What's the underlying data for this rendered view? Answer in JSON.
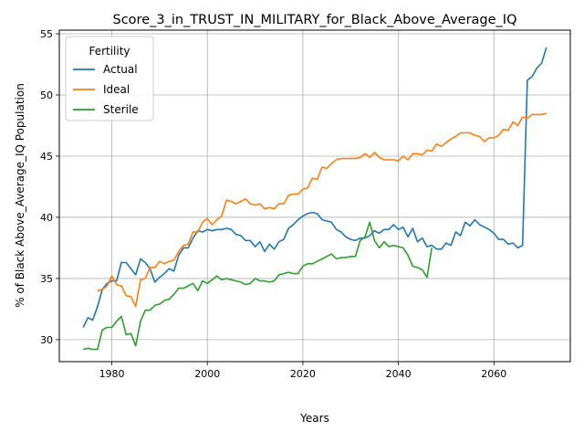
{
  "chart_data": {
    "type": "line",
    "title": "Score_3_in_TRUST_IN_MILITARY_for_Black_Above_Average_IQ",
    "xlabel": "Years",
    "ylabel": "% of Black Above_Average_IQ Population",
    "xlim": [
      1969,
      2076
    ],
    "ylim": [
      28.2,
      55.3
    ],
    "xticks": [
      1980,
      2000,
      2020,
      2040,
      2060
    ],
    "yticks": [
      30,
      35,
      40,
      45,
      50,
      55
    ],
    "grid": true,
    "legend": {
      "title": "Fertility",
      "position": "upper left"
    },
    "series": [
      {
        "name": "Actual",
        "color": "#1f77b4",
        "points": [
          [
            1974,
            31.0
          ],
          [
            1975,
            31.8
          ],
          [
            1976,
            31.6
          ],
          [
            1977,
            32.7
          ],
          [
            1978,
            34.1
          ],
          [
            1979,
            34.6
          ],
          [
            1980,
            34.8
          ],
          [
            1981,
            34.8
          ],
          [
            1982,
            36.3
          ],
          [
            1983,
            36.3
          ],
          [
            1984,
            35.8
          ],
          [
            1985,
            35.3
          ],
          [
            1986,
            36.6
          ],
          [
            1987,
            36.3
          ],
          [
            1988,
            35.8
          ],
          [
            1989,
            34.7
          ],
          [
            1990,
            35.1
          ],
          [
            1991,
            35.4
          ],
          [
            1992,
            35.8
          ],
          [
            1993,
            35.6
          ],
          [
            1994,
            36.9
          ],
          [
            1995,
            37.5
          ],
          [
            1996,
            37.5
          ],
          [
            1997,
            38.3
          ],
          [
            1998,
            38.9
          ],
          [
            1999,
            38.8
          ],
          [
            2000,
            39.0
          ],
          [
            2001,
            38.9
          ],
          [
            2002,
            39.0
          ],
          [
            2003,
            39.0
          ],
          [
            2004,
            39.1
          ],
          [
            2005,
            39.0
          ],
          [
            2006,
            38.6
          ],
          [
            2007,
            38.5
          ],
          [
            2008,
            38.1
          ],
          [
            2009,
            38.1
          ],
          [
            2010,
            37.6
          ],
          [
            2011,
            38.0
          ],
          [
            2012,
            37.2
          ],
          [
            2013,
            37.8
          ],
          [
            2014,
            37.4
          ],
          [
            2015,
            38.0
          ],
          [
            2016,
            38.2
          ],
          [
            2017,
            39.1
          ],
          [
            2018,
            39.4
          ],
          [
            2019,
            39.8
          ],
          [
            2020,
            40.1
          ],
          [
            2021,
            40.3
          ],
          [
            2022,
            40.4
          ],
          [
            2023,
            40.3
          ],
          [
            2024,
            39.8
          ],
          [
            2025,
            39.7
          ],
          [
            2026,
            39.6
          ],
          [
            2027,
            39.0
          ],
          [
            2028,
            38.8
          ],
          [
            2029,
            38.4
          ],
          [
            2030,
            38.2
          ],
          [
            2031,
            38.1
          ],
          [
            2032,
            38.3
          ],
          [
            2033,
            38.3
          ],
          [
            2034,
            38.5
          ],
          [
            2035,
            38.9
          ],
          [
            2036,
            38.7
          ],
          [
            2037,
            39.0
          ],
          [
            2038,
            39.0
          ],
          [
            2039,
            39.4
          ],
          [
            2040,
            39.0
          ],
          [
            2041,
            39.2
          ],
          [
            2042,
            38.4
          ],
          [
            2043,
            39.1
          ],
          [
            2044,
            38.0
          ],
          [
            2045,
            38.3
          ],
          [
            2046,
            37.6
          ],
          [
            2047,
            37.7
          ],
          [
            2048,
            37.4
          ],
          [
            2049,
            37.4
          ],
          [
            2050,
            37.9
          ],
          [
            2051,
            37.7
          ],
          [
            2052,
            38.8
          ],
          [
            2053,
            38.5
          ],
          [
            2054,
            39.6
          ],
          [
            2055,
            39.3
          ],
          [
            2056,
            39.8
          ],
          [
            2057,
            39.4
          ],
          [
            2058,
            39.2
          ],
          [
            2059,
            39.0
          ],
          [
            2060,
            38.7
          ],
          [
            2061,
            38.2
          ],
          [
            2062,
            38.2
          ],
          [
            2063,
            37.8
          ],
          [
            2064,
            37.9
          ],
          [
            2065,
            37.5
          ],
          [
            2066,
            37.7
          ],
          [
            2067,
            51.2
          ],
          [
            2068,
            51.5
          ],
          [
            2069,
            52.2
          ],
          [
            2070,
            52.6
          ],
          [
            2071,
            53.9
          ]
        ]
      },
      {
        "name": "Ideal",
        "color": "#ff7f0e",
        "points": [
          [
            1977,
            34.0
          ],
          [
            1978,
            34.1
          ],
          [
            1979,
            34.4
          ],
          [
            1980,
            35.2
          ],
          [
            1981,
            34.5
          ],
          [
            1982,
            34.4
          ],
          [
            1983,
            33.6
          ],
          [
            1984,
            33.5
          ],
          [
            1985,
            32.7
          ],
          [
            1986,
            34.9
          ],
          [
            1987,
            35.0
          ],
          [
            1988,
            35.9
          ],
          [
            1989,
            35.9
          ],
          [
            1990,
            36.4
          ],
          [
            1991,
            36.2
          ],
          [
            1992,
            36.4
          ],
          [
            1993,
            36.5
          ],
          [
            1994,
            37.2
          ],
          [
            1995,
            37.7
          ],
          [
            1996,
            37.8
          ],
          [
            1997,
            38.8
          ],
          [
            1998,
            38.8
          ],
          [
            1999,
            39.6
          ],
          [
            2000,
            39.9
          ],
          [
            2001,
            39.4
          ],
          [
            2002,
            39.8
          ],
          [
            2003,
            40.1
          ],
          [
            2004,
            41.4
          ],
          [
            2005,
            41.3
          ],
          [
            2006,
            41.1
          ],
          [
            2007,
            41.3
          ],
          [
            2008,
            41.5
          ],
          [
            2009,
            41.1
          ],
          [
            2010,
            41.0
          ],
          [
            2011,
            41.1
          ],
          [
            2012,
            40.7
          ],
          [
            2013,
            40.8
          ],
          [
            2014,
            40.7
          ],
          [
            2015,
            41.1
          ],
          [
            2016,
            41.1
          ],
          [
            2017,
            41.8
          ],
          [
            2018,
            41.9
          ],
          [
            2019,
            41.9
          ],
          [
            2020,
            42.3
          ],
          [
            2021,
            42.4
          ],
          [
            2022,
            43.2
          ],
          [
            2023,
            43.1
          ],
          [
            2024,
            44.1
          ],
          [
            2025,
            44.0
          ],
          [
            2026,
            44.4
          ],
          [
            2027,
            44.7
          ],
          [
            2028,
            44.8
          ],
          [
            2029,
            44.8
          ],
          [
            2030,
            44.8
          ],
          [
            2031,
            44.8
          ],
          [
            2032,
            44.9
          ],
          [
            2033,
            45.2
          ],
          [
            2034,
            44.9
          ],
          [
            2035,
            45.3
          ],
          [
            2036,
            44.9
          ],
          [
            2037,
            44.7
          ],
          [
            2038,
            44.7
          ],
          [
            2039,
            44.7
          ],
          [
            2040,
            44.6
          ],
          [
            2041,
            45.0
          ],
          [
            2042,
            44.7
          ],
          [
            2043,
            45.2
          ],
          [
            2044,
            45.2
          ],
          [
            2045,
            45.1
          ],
          [
            2046,
            45.5
          ],
          [
            2047,
            45.4
          ],
          [
            2048,
            46.0
          ],
          [
            2049,
            45.8
          ],
          [
            2050,
            46.1
          ],
          [
            2051,
            46.4
          ],
          [
            2052,
            46.6
          ],
          [
            2053,
            46.9
          ],
          [
            2054,
            46.9
          ],
          [
            2055,
            46.9
          ],
          [
            2056,
            46.7
          ],
          [
            2057,
            46.6
          ],
          [
            2058,
            46.2
          ],
          [
            2059,
            46.5
          ],
          [
            2060,
            46.5
          ],
          [
            2061,
            46.7
          ],
          [
            2062,
            47.2
          ],
          [
            2063,
            47.1
          ],
          [
            2064,
            47.8
          ],
          [
            2065,
            47.5
          ],
          [
            2066,
            48.2
          ],
          [
            2067,
            48.1
          ],
          [
            2068,
            48.4
          ],
          [
            2069,
            48.4
          ],
          [
            2070,
            48.4
          ],
          [
            2071,
            48.5
          ]
        ]
      },
      {
        "name": "Sterile",
        "color": "#2ca02c",
        "points": [
          [
            1974,
            29.2
          ],
          [
            1975,
            29.3
          ],
          [
            1976,
            29.2
          ],
          [
            1977,
            29.2
          ],
          [
            1978,
            30.8
          ],
          [
            1979,
            31.0
          ],
          [
            1980,
            31.0
          ],
          [
            1981,
            31.5
          ],
          [
            1982,
            31.9
          ],
          [
            1983,
            30.4
          ],
          [
            1984,
            30.5
          ],
          [
            1985,
            29.5
          ],
          [
            1986,
            31.5
          ],
          [
            1987,
            32.4
          ],
          [
            1988,
            32.4
          ],
          [
            1989,
            32.8
          ],
          [
            1990,
            32.9
          ],
          [
            1991,
            33.2
          ],
          [
            1992,
            33.3
          ],
          [
            1993,
            33.7
          ],
          [
            1994,
            34.2
          ],
          [
            1995,
            34.2
          ],
          [
            1996,
            34.4
          ],
          [
            1997,
            34.6
          ],
          [
            1998,
            34.0
          ],
          [
            1999,
            34.8
          ],
          [
            2000,
            34.6
          ],
          [
            2001,
            34.9
          ],
          [
            2002,
            35.2
          ],
          [
            2003,
            34.9
          ],
          [
            2004,
            35.0
          ],
          [
            2005,
            34.9
          ],
          [
            2006,
            34.8
          ],
          [
            2007,
            34.7
          ],
          [
            2008,
            34.5
          ],
          [
            2009,
            34.6
          ],
          [
            2010,
            35.0
          ],
          [
            2011,
            34.8
          ],
          [
            2012,
            34.8
          ],
          [
            2013,
            34.7
          ],
          [
            2014,
            34.8
          ],
          [
            2015,
            35.3
          ],
          [
            2016,
            35.4
          ],
          [
            2017,
            35.5
          ],
          [
            2018,
            35.4
          ],
          [
            2019,
            35.4
          ],
          [
            2020,
            36.0
          ],
          [
            2021,
            36.2
          ],
          [
            2022,
            36.2
          ],
          [
            2023,
            36.4
          ],
          [
            2024,
            36.6
          ],
          [
            2025,
            36.8
          ],
          [
            2026,
            37.0
          ],
          [
            2027,
            36.6
          ],
          [
            2028,
            36.7
          ],
          [
            2029,
            36.7
          ],
          [
            2030,
            36.8
          ],
          [
            2031,
            36.8
          ],
          [
            2032,
            38.1
          ],
          [
            2033,
            38.4
          ],
          [
            2034,
            39.6
          ],
          [
            2035,
            38.1
          ],
          [
            2036,
            37.5
          ],
          [
            2037,
            38.0
          ],
          [
            2038,
            37.6
          ],
          [
            2039,
            37.7
          ],
          [
            2040,
            37.6
          ],
          [
            2041,
            37.5
          ],
          [
            2042,
            36.9
          ],
          [
            2043,
            36.0
          ],
          [
            2044,
            35.9
          ],
          [
            2045,
            35.7
          ],
          [
            2046,
            35.1
          ],
          [
            2047,
            37.5
          ]
        ]
      }
    ]
  }
}
